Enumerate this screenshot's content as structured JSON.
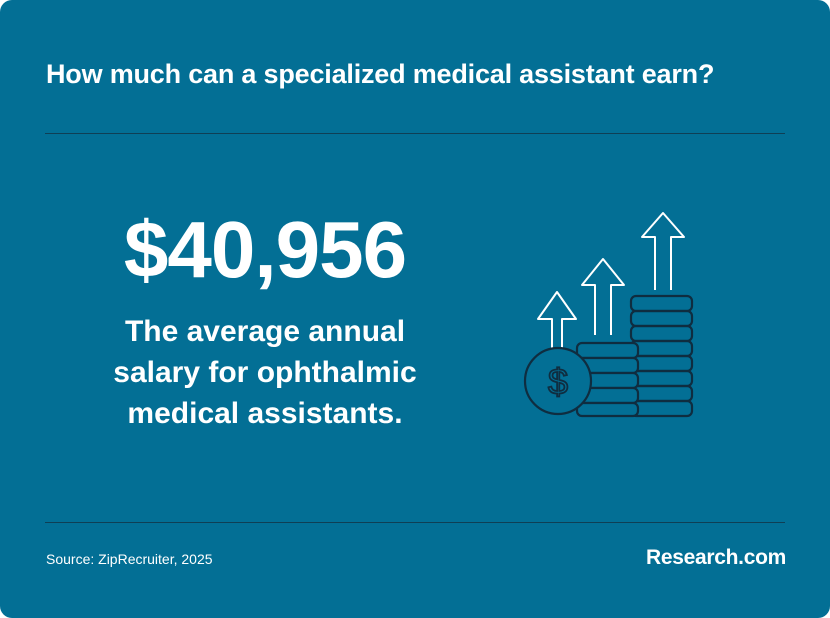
{
  "headline": "How much can a specialized medical assistant earn?",
  "stat": {
    "value": "$40,956",
    "caption": "The average annual salary for ophthalmic medical assistants."
  },
  "illustration": {
    "icon": "coin-stacks-with-up-arrows-icon",
    "coin_symbol": "$"
  },
  "footer": {
    "source": "Source: ZipRecruiter, 2025",
    "brand": "Research.com"
  },
  "colors": {
    "background": "#036f95",
    "text": "#ffffff",
    "divider": "#0f3f55",
    "icon_stroke": "#0f2d40"
  }
}
